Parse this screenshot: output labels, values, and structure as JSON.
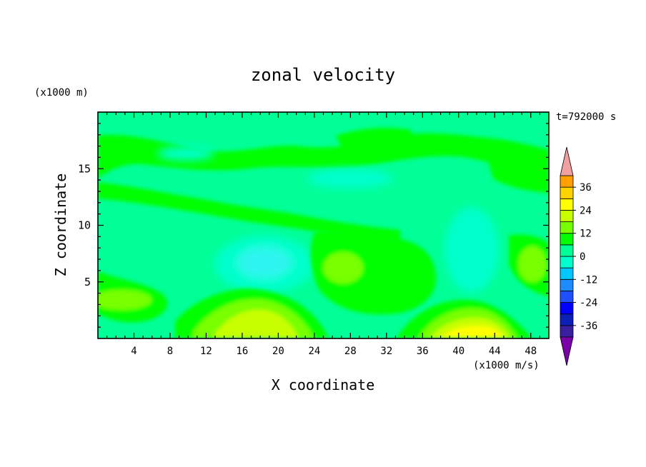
{
  "chart_data": {
    "type": "heatmap",
    "title": "zonal velocity",
    "xlabel": "X coordinate",
    "ylabel": "Z coordinate",
    "x_unit": "(x1000 m/s)",
    "y_unit": "(x1000 m)",
    "time_label": "t=792000 s",
    "xlim": [
      0,
      50
    ],
    "ylim": [
      0,
      20
    ],
    "x_ticks": [
      4,
      8,
      12,
      16,
      20,
      24,
      28,
      32,
      36,
      40,
      44,
      48
    ],
    "y_ticks": [
      5,
      10,
      15
    ],
    "colorbar": {
      "min": -42,
      "max": 42,
      "step": 6,
      "tick_values": [
        -36,
        -24,
        -12,
        0,
        12,
        24,
        36
      ],
      "extend": "both",
      "colors": [
        "#7a00a8",
        "#3a1fa0",
        "#0c1fb6",
        "#0000ff",
        "#1e50ff",
        "#1e8cff",
        "#00c8ff",
        "#00ffcc",
        "#00ff96",
        "#00ff00",
        "#78ff00",
        "#c8ff00",
        "#ffff00",
        "#ffd200",
        "#ffa000",
        "#ff7800",
        "#ff3c00",
        "#ff0000",
        "#f0a0a0"
      ]
    },
    "grid": false,
    "field_description": "contour-filled zonal velocity, mostly between -12 and 12; positive (yellow-green) cores near the bottom at x=16-22 and x=38-46; negative (cyan) pockets at mid-levels near x=18-22 and x=40-44"
  }
}
